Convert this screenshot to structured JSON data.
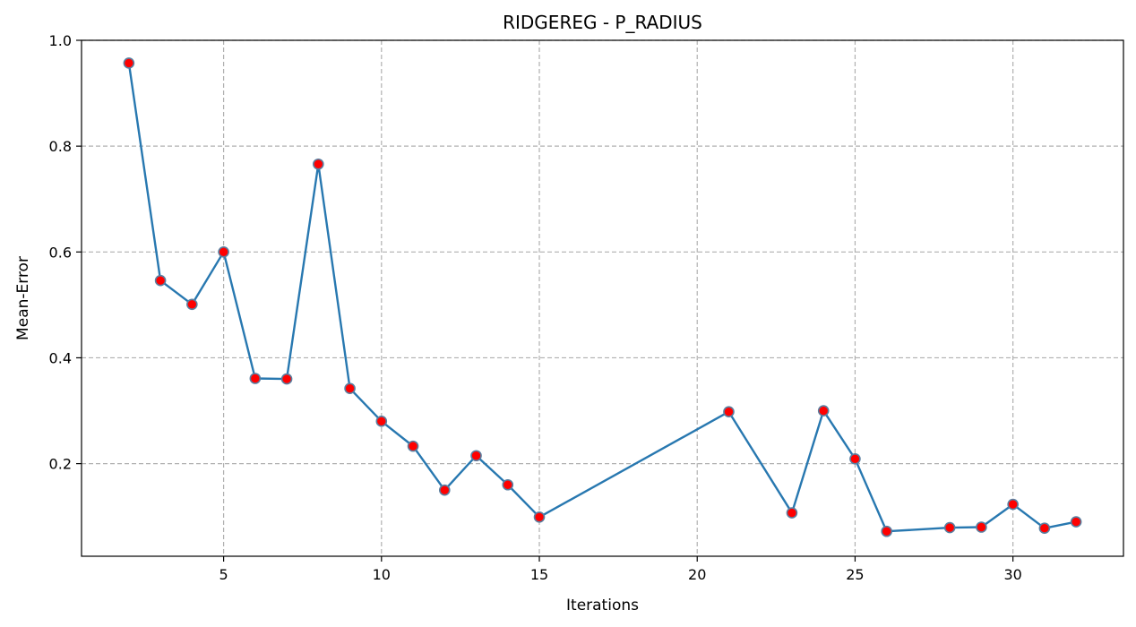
{
  "chart_data": {
    "type": "line",
    "title": "RIDGEREG - P_RADIUS",
    "xlabel": "Iterations",
    "ylabel": "Mean-Error",
    "xlim": [
      0.5,
      33.5
    ],
    "ylim": [
      0.025,
      1.0
    ],
    "xticks": [
      5,
      10,
      15,
      20,
      25,
      30
    ],
    "yticks": [
      0.2,
      0.4,
      0.6,
      0.8,
      1.0
    ],
    "ytick_labels": [
      "0.2",
      "0.4",
      "0.6",
      "0.8",
      "1.0"
    ],
    "grid": true,
    "series": [
      {
        "line_color": "#2878b0",
        "marker_face_color": "#ff0000",
        "marker_edge_color": "#5a7fa0",
        "x": [
          2,
          3,
          4,
          5,
          6,
          7,
          8,
          9,
          10,
          11,
          12,
          13,
          14,
          15,
          21,
          23,
          24,
          25,
          26,
          28,
          29,
          30,
          31,
          32
        ],
        "y": [
          0.957,
          0.546,
          0.501,
          0.6,
          0.361,
          0.36,
          0.766,
          0.342,
          0.28,
          0.233,
          0.15,
          0.215,
          0.16,
          0.099,
          0.298,
          0.107,
          0.3,
          0.209,
          0.072,
          0.079,
          0.08,
          0.123,
          0.078,
          0.09
        ]
      }
    ]
  }
}
